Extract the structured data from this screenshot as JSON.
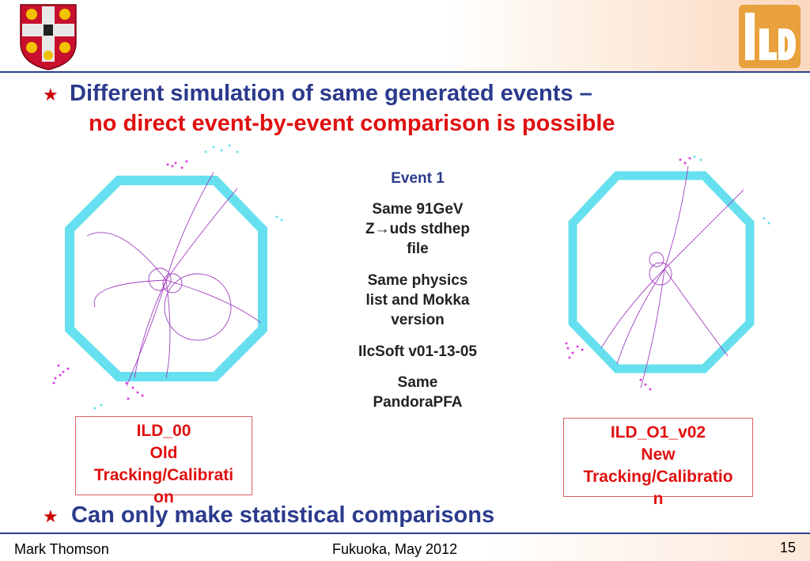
{
  "slide": {
    "bullets": [
      {
        "line1": "Different simulation of same generated events –",
        "line2": "no direct event-by-event comparison is possible"
      },
      {
        "line1": "Can only make statistical comparisons"
      }
    ],
    "center": {
      "event_label": "Event 1",
      "block1": [
        "Same 91GeV",
        "Z→uds stdhep",
        "file"
      ],
      "block2": [
        "Same physics",
        "list and Mokka",
        "version"
      ],
      "block3": [
        "IlcSoft v01-13-05"
      ],
      "block4": [
        "Same",
        "PandoraPFA"
      ]
    },
    "left_box": [
      "ILD_00",
      "Old",
      "Tracking/Calibrati",
      "on"
    ],
    "right_box": [
      "ILD_O1_v02",
      "New",
      "Tracking/Calibratio",
      "n"
    ],
    "footer": {
      "author": "Mark Thomson",
      "venue": "Fukuoka, May 2012",
      "page": "15"
    },
    "logos": {
      "left": "cambridge-crest",
      "right": "ild-logo"
    },
    "colors": {
      "accent_blue": "#2b3a8c",
      "accent_red": "#e01010",
      "detector": "#66e0ee",
      "tracks": "#a040c0",
      "hits": "#e040e0"
    }
  }
}
